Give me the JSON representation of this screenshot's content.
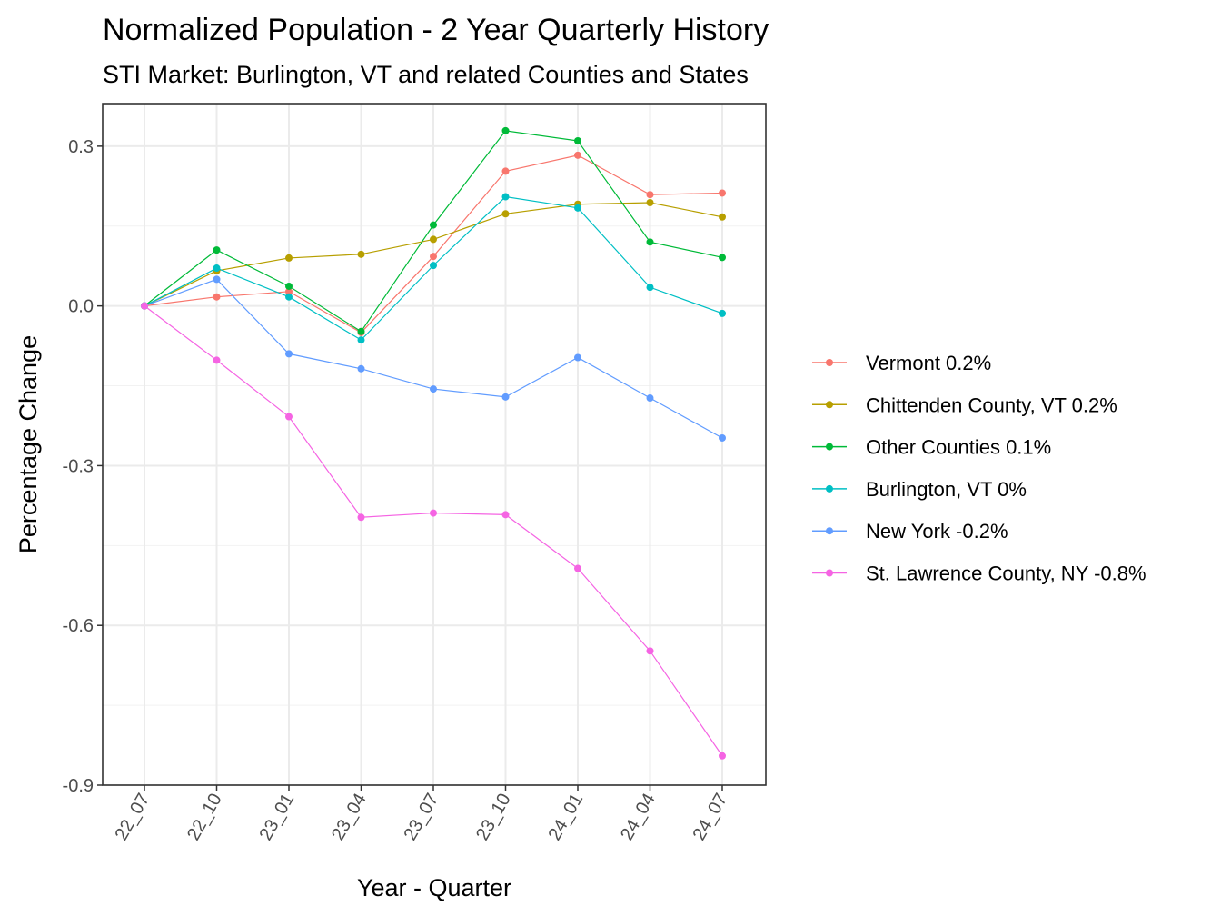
{
  "chart_data": {
    "type": "line",
    "title": "Normalized Population - 2 Year Quarterly History",
    "subtitle": "STI Market: Burlington, VT and related Counties and States",
    "xlabel": "Year - Quarter",
    "ylabel": "Percentage Change",
    "categories": [
      "22_07",
      "22_10",
      "23_01",
      "23_04",
      "23_07",
      "23_10",
      "24_01",
      "24_04",
      "24_07"
    ],
    "ylim": [
      -0.9,
      0.38
    ],
    "yticks": [
      0.3,
      0.0,
      -0.3,
      -0.6,
      -0.9
    ],
    "ytick_labels": [
      "0.3",
      "0.0",
      "-0.3",
      "-0.6",
      "-0.9"
    ],
    "grid": true,
    "legend_position": "right",
    "series": [
      {
        "name": "Vermont 0.2%",
        "color": "#F8766D",
        "values": [
          0.0,
          0.017,
          0.027,
          -0.05,
          0.093,
          0.253,
          0.283,
          0.209,
          0.212
        ]
      },
      {
        "name": "Chittenden County, VT 0.2%",
        "color": "#B79F00",
        "values": [
          0.0,
          0.066,
          0.09,
          0.097,
          0.125,
          0.173,
          0.191,
          0.194,
          0.167
        ]
      },
      {
        "name": "Other Counties 0.1%",
        "color": "#00BA38",
        "values": [
          0.0,
          0.105,
          0.037,
          -0.048,
          0.152,
          0.329,
          0.31,
          0.12,
          0.091
        ]
      },
      {
        "name": "Burlington, VT 0%",
        "color": "#00BFC4",
        "values": [
          0.0,
          0.071,
          0.017,
          -0.064,
          0.076,
          0.205,
          0.184,
          0.035,
          -0.014
        ]
      },
      {
        "name": "New York -0.2%",
        "color": "#619CFF",
        "values": [
          0.0,
          0.05,
          -0.09,
          -0.118,
          -0.156,
          -0.171,
          -0.097,
          -0.173,
          -0.248
        ]
      },
      {
        "name": "St. Lawrence County, NY -0.8%",
        "color": "#F564E3",
        "values": [
          0.0,
          -0.102,
          -0.208,
          -0.397,
          -0.389,
          -0.392,
          -0.493,
          -0.648,
          -0.845
        ]
      }
    ]
  }
}
